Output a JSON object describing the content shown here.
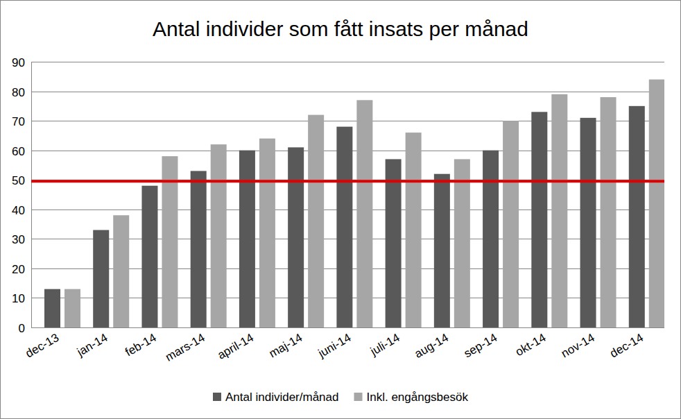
{
  "chart_data": {
    "type": "bar",
    "title": "Antal individer som fått insats per månad",
    "categories": [
      "dec-13",
      "jan-14",
      "feb-14",
      "mars-14",
      "april-14",
      "maj-14",
      "juni-14",
      "juli-14",
      "aug-14",
      "sep-14",
      "okt-14",
      "nov-14",
      "dec-14"
    ],
    "series": [
      {
        "name": "Antal individer/månad",
        "color": "#595959",
        "values": [
          13,
          33,
          48,
          53,
          60,
          61,
          68,
          57,
          52,
          60,
          73,
          71,
          75
        ]
      },
      {
        "name": "Inkl. engångsbesök",
        "color": "#a6a6a6",
        "values": [
          13,
          38,
          58,
          62,
          64,
          72,
          77,
          66,
          57,
          70,
          79,
          78,
          84
        ]
      }
    ],
    "reference_line": {
      "value": 49.5,
      "color": "#e00000"
    },
    "ylim": [
      0,
      90
    ],
    "yticks": [
      0,
      10,
      20,
      30,
      40,
      50,
      60,
      70,
      80,
      90
    ],
    "grid": true,
    "legend": "bottom"
  }
}
